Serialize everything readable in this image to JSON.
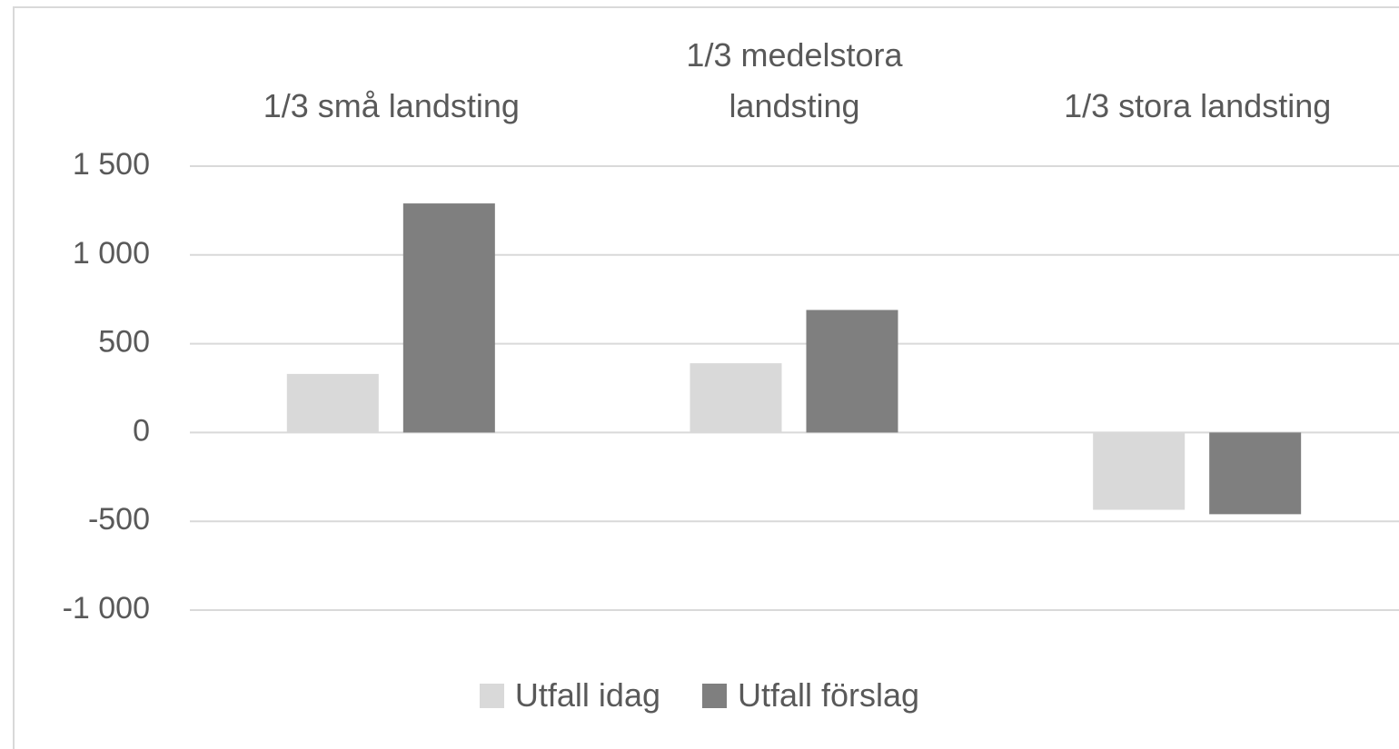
{
  "chart_data": {
    "type": "bar",
    "categories": [
      "1/3 små landsting",
      "1/3 medelstora landsting",
      "1/3 stora landsting"
    ],
    "series": [
      {
        "name": "Utfall idag",
        "color": "#d9d9d9",
        "values": [
          330,
          390,
          -435
        ]
      },
      {
        "name": "Utfall förslag",
        "color": "#7f7f7f",
        "values": [
          1290,
          690,
          -460
        ]
      }
    ],
    "ylim": [
      -1000,
      1500
    ],
    "yticks": [
      {
        "value": -1000,
        "label": "-1 000"
      },
      -500,
      0,
      500,
      {
        "value": 1000,
        "label": "1 000"
      },
      {
        "value": 1500,
        "label": "1 500"
      }
    ],
    "grid": true,
    "legend": "bottom"
  }
}
